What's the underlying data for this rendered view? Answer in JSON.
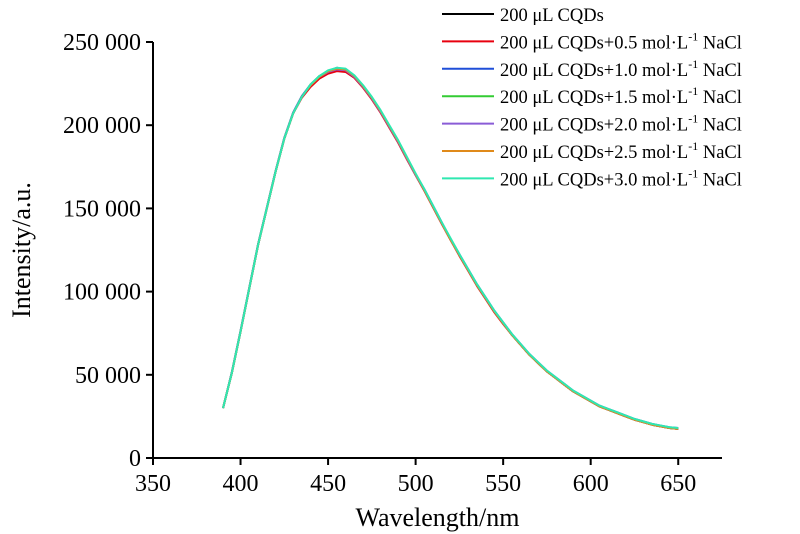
{
  "chart_data": {
    "type": "line",
    "xlabel": "Wavelength/nm",
    "ylabel": "Intensity/a.u.",
    "xlim": [
      350,
      675
    ],
    "ylim": [
      0,
      250000
    ],
    "x_ticks": [
      350,
      400,
      450,
      500,
      550,
      600,
      650
    ],
    "y_ticks": [
      0,
      50000,
      100000,
      150000,
      200000,
      250000
    ],
    "x_tick_labels": [
      "350",
      "400",
      "450",
      "500",
      "550",
      "600",
      "650"
    ],
    "y_tick_labels": [
      "0",
      "50 000",
      "100 000",
      "150 000",
      "200 000",
      "250 000"
    ],
    "grid": false,
    "legend_position": "top-right",
    "x": [
      390,
      395,
      400,
      405,
      410,
      415,
      420,
      425,
      430,
      435,
      440,
      445,
      450,
      455,
      460,
      465,
      470,
      475,
      480,
      485,
      490,
      495,
      500,
      505,
      510,
      515,
      520,
      525,
      530,
      535,
      540,
      545,
      550,
      555,
      560,
      565,
      570,
      575,
      580,
      585,
      590,
      595,
      600,
      605,
      610,
      615,
      620,
      625,
      630,
      635,
      640,
      645,
      650
    ],
    "series": [
      {
        "name": "200 μL CQDs",
        "color": "#000000",
        "values": [
          30000,
          51000,
          76000,
          102000,
          128000,
          150000,
          172000,
          192000,
          207000,
          217000,
          224000,
          229000,
          232000,
          234000,
          233000,
          229000,
          223000,
          216000,
          208000,
          199000,
          190000,
          180000,
          170000,
          161000,
          151000,
          141000,
          131000,
          122000,
          113000,
          104000,
          96000,
          88000,
          81000,
          74000,
          68000,
          62000,
          57000,
          52000,
          48000,
          44000,
          40000,
          37000,
          34000,
          31000,
          29000,
          27000,
          25000,
          23000,
          21500,
          20000,
          19000,
          18000,
          17500
        ]
      },
      {
        "name": "200 μL CQDs+0.5 mol·L",
        "name_sup": "-1",
        "name_suffix": " NaCl",
        "color": "#e8000f",
        "values": [
          30000,
          51000,
          76000,
          102000,
          128000,
          150000,
          172000,
          192000,
          207000,
          216500,
          223000,
          228000,
          231000,
          232500,
          232000,
          228500,
          222500,
          215500,
          207500,
          198500,
          189500,
          179500,
          170000,
          160500,
          150500,
          140500,
          131000,
          121500,
          112500,
          103500,
          95500,
          87500,
          80500,
          74000,
          68000,
          62000,
          57000,
          52000,
          48000,
          44000,
          40000,
          37000,
          34000,
          31000,
          29000,
          27000,
          25000,
          23000,
          21500,
          20000,
          19000,
          18000,
          17500
        ]
      },
      {
        "name": "200 μL CQDs+1.0 mol·L",
        "name_sup": "-1",
        "name_suffix": " NaCl",
        "color": "#1f4fd8",
        "values": [
          30000,
          51500,
          76500,
          102500,
          128500,
          150500,
          172500,
          192500,
          207500,
          217500,
          224500,
          229500,
          232500,
          234500,
          233500,
          229500,
          223500,
          216500,
          208500,
          199500,
          190500,
          180500,
          170500,
          161500,
          151500,
          141500,
          131500,
          122500,
          113500,
          104500,
          96500,
          88500,
          81500,
          74500,
          68500,
          62500,
          57500,
          52500,
          48500,
          44500,
          40500,
          37500,
          34500,
          31500,
          29500,
          27500,
          25500,
          23500,
          22000,
          20500,
          19500,
          18500,
          18000
        ]
      },
      {
        "name": "200 μL CQDs+1.5 mol·L",
        "name_sup": "-1",
        "name_suffix": " NaCl",
        "color": "#33cc33",
        "values": [
          30000,
          51000,
          76000,
          102000,
          128000,
          150000,
          172000,
          192000,
          207000,
          217000,
          224500,
          229500,
          232500,
          234000,
          233500,
          229500,
          223500,
          216500,
          208500,
          199500,
          190500,
          180500,
          170500,
          161000,
          151000,
          141000,
          131500,
          122000,
          113000,
          104000,
          96000,
          88000,
          81000,
          74000,
          68000,
          62000,
          57000,
          52000,
          48000,
          44000,
          40000,
          37000,
          34000,
          31000,
          29000,
          27000,
          25000,
          23000,
          21500,
          20000,
          19000,
          18000,
          17500
        ]
      },
      {
        "name": "200 μL CQDs+2.0 mol·L",
        "name_sup": "-1",
        "name_suffix": " NaCl",
        "color": "#8a5cd6",
        "values": [
          30000,
          51000,
          76000,
          102000,
          128000,
          150000,
          172000,
          192000,
          207000,
          217000,
          224000,
          229000,
          232000,
          233500,
          233000,
          229000,
          223000,
          216000,
          208000,
          199000,
          190000,
          180000,
          170000,
          161000,
          151000,
          141000,
          131000,
          122000,
          113000,
          104000,
          96000,
          88000,
          81000,
          74000,
          68000,
          62000,
          57000,
          52000,
          48000,
          44000,
          40000,
          37000,
          34000,
          31000,
          29000,
          27000,
          25000,
          23000,
          21500,
          20000,
          19000,
          18000,
          17500
        ]
      },
      {
        "name": "200 μL CQDs+2.5 mol·L",
        "name_sup": "-1",
        "name_suffix": " NaCl",
        "color": "#e08a1a",
        "values": [
          30000,
          51000,
          76000,
          102000,
          128000,
          150000,
          172000,
          192000,
          207000,
          217000,
          224000,
          229000,
          232500,
          234000,
          233500,
          229500,
          223500,
          216500,
          208500,
          199500,
          190500,
          180500,
          170500,
          161000,
          151000,
          141000,
          131000,
          122000,
          113000,
          104000,
          96000,
          88000,
          81000,
          74000,
          68000,
          62000,
          57000,
          52000,
          48000,
          44000,
          40000,
          37000,
          34000,
          31000,
          29000,
          27000,
          25000,
          23000,
          21500,
          20000,
          19000,
          18000,
          17500
        ]
      },
      {
        "name": "200 μL CQDs+3.0 mol·L",
        "name_sup": "-1",
        "name_suffix": " NaCl",
        "color": "#2fe8b0",
        "values": [
          30000,
          51000,
          76000,
          102000,
          128000,
          150000,
          172000,
          192000,
          207000,
          217000,
          224500,
          229500,
          233000,
          234500,
          234000,
          230000,
          224000,
          217000,
          209000,
          200000,
          191000,
          181000,
          171000,
          161500,
          151500,
          141500,
          132000,
          122500,
          113500,
          104500,
          96500,
          88500,
          81500,
          74500,
          68500,
          62500,
          57500,
          52500,
          48500,
          44500,
          40500,
          37500,
          34500,
          31500,
          29500,
          27500,
          25500,
          23500,
          22000,
          20500,
          19500,
          18500,
          18000
        ]
      }
    ]
  }
}
